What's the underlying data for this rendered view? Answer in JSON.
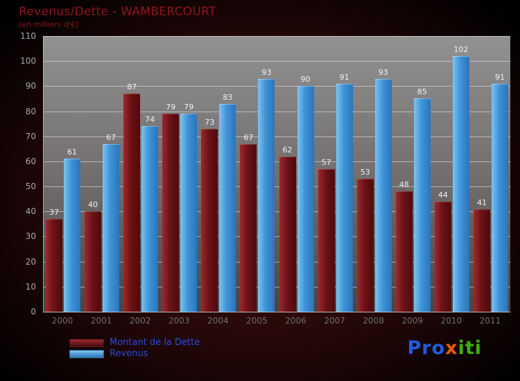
{
  "chart_data": {
    "type": "bar",
    "title": "Revenus/Dette - WAMBERCOURT",
    "subtitle": "(en milliers d'€)",
    "categories": [
      "2000",
      "2001",
      "2002",
      "2003",
      "2004",
      "2005",
      "2006",
      "2007",
      "2008",
      "2009",
      "2010",
      "2011"
    ],
    "series": [
      {
        "name": "Montant de la Dette",
        "values": [
          37,
          40,
          87,
          79,
          73,
          67,
          62,
          57,
          53,
          48,
          44,
          41
        ],
        "color_top": "#9b2a2e",
        "color_bottom": "#4e0a0e",
        "legend_color": "#7a1216"
      },
      {
        "name": "Revenus",
        "values": [
          61,
          67,
          74,
          79,
          83,
          93,
          90,
          91,
          93,
          85,
          102,
          91
        ],
        "color_top": "#7cc4f0",
        "color_bottom": "#2a75bd",
        "legend_color": "#4aa0e0"
      }
    ],
    "ylim": [
      0,
      110
    ],
    "ytick_step": 10,
    "grid": true,
    "legend_position": "bottom-left",
    "value_labels_shown": true
  },
  "logo": {
    "part1": "Pro",
    "part2": "x",
    "part3": "iti"
  },
  "colors": {
    "title": "#8e161b",
    "legend_text": "#2e4bd8",
    "value_label": "#f2f2f2",
    "y_tick": "#a8a8a8",
    "x_tick": "#6e6e6e"
  }
}
